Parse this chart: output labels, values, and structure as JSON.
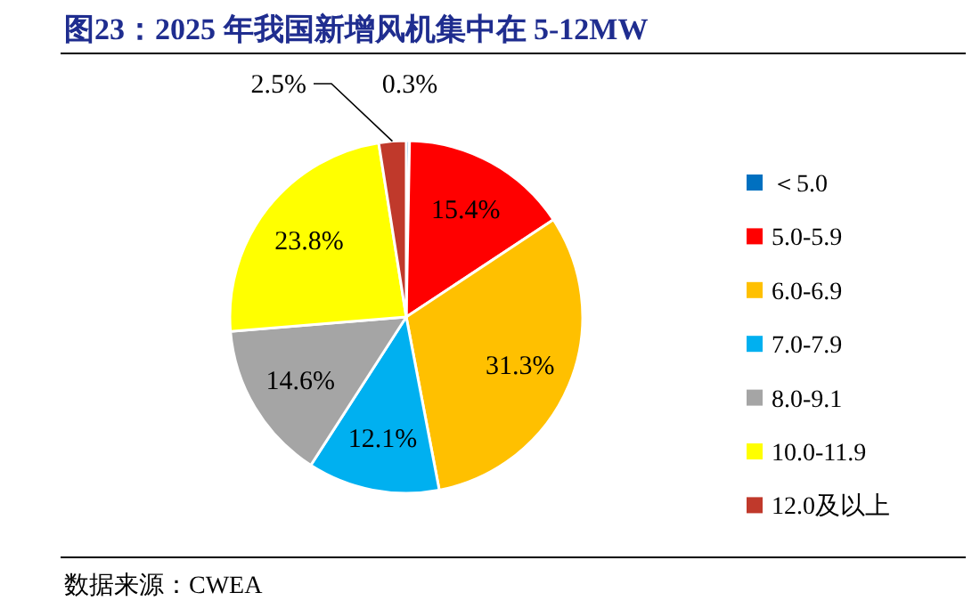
{
  "chart_data": {
    "type": "pie",
    "title": "图23：2025 年我国新增风机集中在 5-12MW",
    "categories": [
      "＜5.0",
      "5.0-5.9",
      "6.0-6.9",
      "7.0-7.9",
      "8.0-9.1",
      "10.0-11.9",
      "12.0及以上"
    ],
    "values": [
      0.3,
      15.4,
      31.3,
      12.1,
      14.6,
      23.8,
      2.5
    ],
    "colors": [
      "#0070c0",
      "#ff0000",
      "#ffc000",
      "#00b0f0",
      "#a5a5a5",
      "#ffff00",
      "#c0392b"
    ],
    "value_labels": [
      "0.3%",
      "15.4%",
      "31.3%",
      "12.1%",
      "14.6%",
      "23.8%",
      "2.5%"
    ],
    "legend": "right",
    "annotations": [
      "数据来源：CWEA"
    ]
  }
}
